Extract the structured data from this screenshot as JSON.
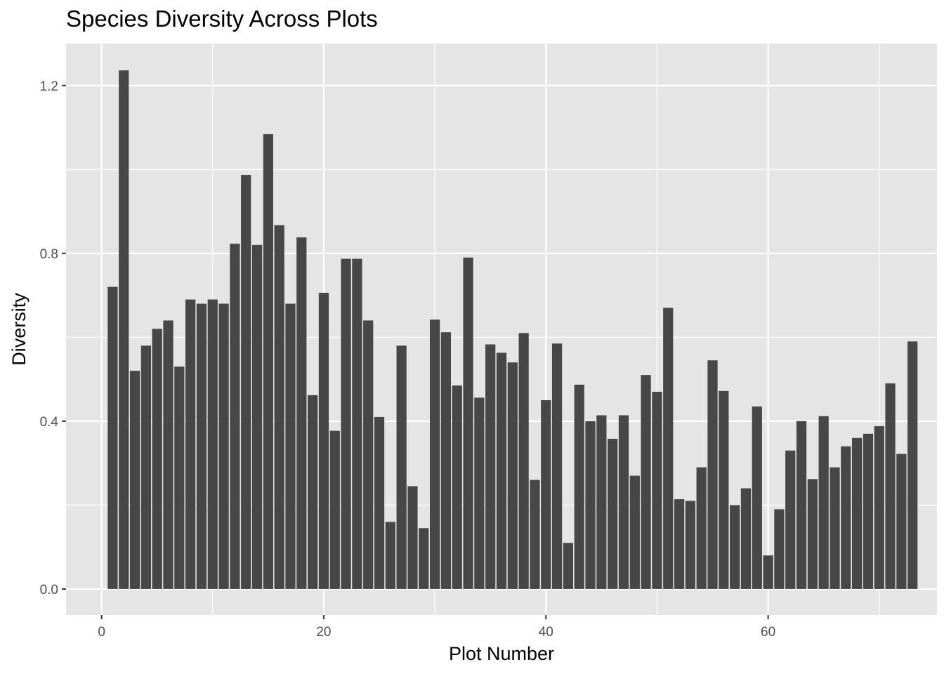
{
  "chart_data": {
    "type": "bar",
    "title": "Species Diversity Across Plots",
    "xlabel": "Plot Number",
    "ylabel": "Diversity",
    "xlim": [
      -3.2,
      75.2
    ],
    "ylim": [
      -0.062,
      1.3
    ],
    "x_ticks": [
      0,
      20,
      40,
      60
    ],
    "x_tick_labels": [
      "0",
      "20",
      "40",
      "60"
    ],
    "y_ticks": [
      0.0,
      0.4,
      0.8,
      1.2
    ],
    "y_tick_labels": [
      "0.0",
      "0.4",
      "0.8",
      "1.2"
    ],
    "grid": true,
    "bar_color": "#474747",
    "panel_color": "#e5e5e5",
    "grid_color": "#ffffff",
    "x": [
      1,
      2,
      3,
      4,
      5,
      6,
      7,
      8,
      9,
      10,
      11,
      12,
      13,
      14,
      15,
      16,
      17,
      18,
      19,
      20,
      21,
      22,
      23,
      24,
      25,
      26,
      27,
      28,
      29,
      30,
      31,
      32,
      33,
      34,
      35,
      36,
      37,
      38,
      39,
      40,
      41,
      42,
      43,
      44,
      45,
      46,
      47,
      48,
      49,
      50,
      51,
      52,
      53,
      54,
      55,
      56,
      57,
      58,
      59,
      60,
      61,
      62,
      63,
      64,
      65,
      66,
      67,
      68,
      69,
      70,
      71,
      72,
      73
    ],
    "values": [
      0.72,
      1.236,
      0.52,
      0.58,
      0.62,
      0.64,
      0.53,
      0.69,
      0.68,
      0.69,
      0.68,
      0.823,
      0.987,
      0.82,
      1.084,
      0.867,
      0.68,
      0.838,
      0.462,
      0.706,
      0.377,
      0.787,
      0.787,
      0.64,
      0.41,
      0.16,
      0.58,
      0.245,
      0.145,
      0.642,
      0.612,
      0.485,
      0.79,
      0.456,
      0.583,
      0.563,
      0.54,
      0.61,
      0.26,
      0.45,
      0.585,
      0.11,
      0.487,
      0.4,
      0.414,
      0.358,
      0.414,
      0.27,
      0.51,
      0.47,
      0.67,
      0.214,
      0.21,
      0.29,
      0.545,
      0.472,
      0.2,
      0.24,
      0.435,
      0.08,
      0.19,
      0.33,
      0.4,
      0.262,
      0.412,
      0.29,
      0.34,
      0.36,
      0.37,
      0.388,
      0.49,
      0.322,
      0.59
    ]
  }
}
